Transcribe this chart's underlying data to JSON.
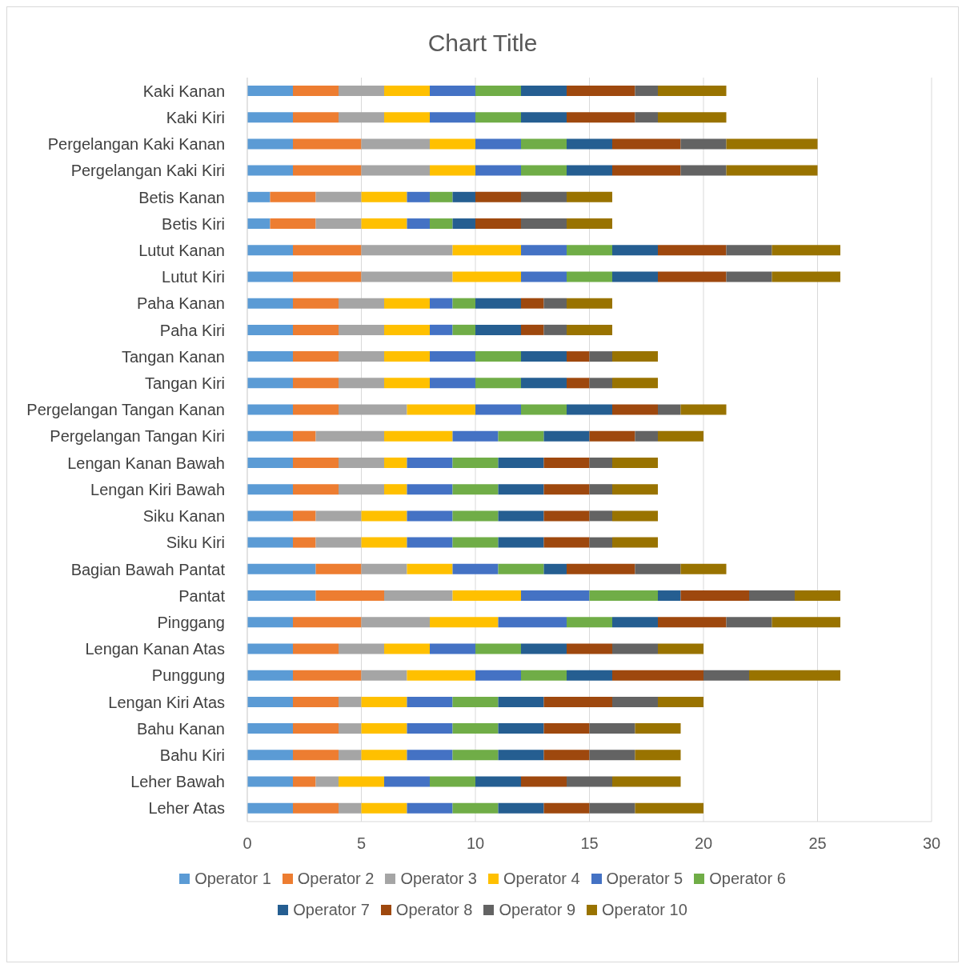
{
  "chart_data": {
    "type": "bar",
    "orientation": "horizontal",
    "stacked": true,
    "title": "Chart Title",
    "categories": [
      "Kaki Kanan",
      "Kaki Kiri",
      "Pergelangan Kaki Kanan",
      "Pergelangan Kaki Kiri",
      "Betis Kanan",
      "Betis Kiri",
      "Lutut Kanan",
      "Lutut Kiri",
      "Paha Kanan",
      "Paha Kiri",
      "Tangan Kanan",
      "Tangan Kiri",
      "Pergelangan Tangan Kanan",
      "Pergelangan Tangan Kiri",
      "Lengan Kanan Bawah",
      "Lengan Kiri Bawah",
      "Siku Kanan",
      "Siku Kiri",
      "Bagian Bawah Pantat",
      "Pantat",
      "Pinggang",
      "Lengan Kanan Atas",
      "Punggung",
      "Lengan Kiri Atas",
      "Bahu Kanan",
      "Bahu Kiri",
      "Leher Bawah",
      "Leher Atas"
    ],
    "series": [
      {
        "name": "Operator 1",
        "color": "#5b9bd5",
        "values": [
          2,
          2,
          2,
          2,
          1,
          1,
          2,
          2,
          2,
          2,
          2,
          2,
          2,
          2,
          2,
          2,
          2,
          2,
          3,
          3,
          2,
          2,
          2,
          2,
          2,
          2,
          2,
          2
        ]
      },
      {
        "name": "Operator 2",
        "color": "#ed7d31",
        "values": [
          2,
          2,
          3,
          3,
          2,
          2,
          3,
          3,
          2,
          2,
          2,
          2,
          2,
          1,
          2,
          2,
          1,
          1,
          2,
          3,
          3,
          2,
          3,
          2,
          2,
          2,
          1,
          2
        ]
      },
      {
        "name": "Operator 3",
        "color": "#a5a5a5",
        "values": [
          2,
          2,
          3,
          3,
          2,
          2,
          4,
          4,
          2,
          2,
          2,
          2,
          3,
          3,
          2,
          2,
          2,
          2,
          2,
          3,
          3,
          2,
          2,
          1,
          1,
          1,
          1,
          1
        ]
      },
      {
        "name": "Operator 4",
        "color": "#ffc000",
        "values": [
          2,
          2,
          2,
          2,
          2,
          2,
          3,
          3,
          2,
          2,
          2,
          2,
          3,
          3,
          1,
          1,
          2,
          2,
          2,
          3,
          3,
          2,
          3,
          2,
          2,
          2,
          2,
          2
        ]
      },
      {
        "name": "Operator 5",
        "color": "#4472c4",
        "values": [
          2,
          2,
          2,
          2,
          1,
          1,
          2,
          2,
          1,
          1,
          2,
          2,
          2,
          2,
          2,
          2,
          2,
          2,
          2,
          3,
          3,
          2,
          2,
          2,
          2,
          2,
          2,
          2
        ]
      },
      {
        "name": "Operator 6",
        "color": "#70ad47",
        "values": [
          2,
          2,
          2,
          2,
          1,
          1,
          2,
          2,
          1,
          1,
          2,
          2,
          2,
          2,
          2,
          2,
          2,
          2,
          2,
          3,
          2,
          2,
          2,
          2,
          2,
          2,
          2,
          2
        ]
      },
      {
        "name": "Operator 7",
        "color": "#255e91",
        "values": [
          2,
          2,
          2,
          2,
          1,
          1,
          2,
          2,
          2,
          2,
          2,
          2,
          2,
          2,
          2,
          2,
          2,
          2,
          1,
          1,
          2,
          2,
          2,
          2,
          2,
          2,
          2,
          2
        ]
      },
      {
        "name": "Operator 8",
        "color": "#9e480e",
        "values": [
          3,
          3,
          3,
          3,
          2,
          2,
          3,
          3,
          1,
          1,
          1,
          1,
          2,
          2,
          2,
          2,
          2,
          2,
          3,
          3,
          3,
          2,
          4,
          3,
          2,
          2,
          2,
          2
        ]
      },
      {
        "name": "Operator 9",
        "color": "#636363",
        "values": [
          1,
          1,
          2,
          2,
          2,
          2,
          2,
          2,
          1,
          1,
          1,
          1,
          1,
          1,
          1,
          1,
          1,
          1,
          2,
          2,
          2,
          2,
          2,
          2,
          2,
          2,
          2,
          2
        ]
      },
      {
        "name": "Operator 10",
        "color": "#997300",
        "values": [
          3,
          3,
          4,
          4,
          2,
          2,
          3,
          3,
          2,
          2,
          2,
          2,
          2,
          2,
          2,
          2,
          2,
          2,
          2,
          2,
          3,
          2,
          4,
          2,
          2,
          2,
          3,
          3
        ]
      }
    ],
    "xlim": [
      0,
      30
    ],
    "xticks": [
      0,
      5,
      10,
      15,
      20,
      25,
      30
    ],
    "grid": "x",
    "legend": "bottom"
  }
}
